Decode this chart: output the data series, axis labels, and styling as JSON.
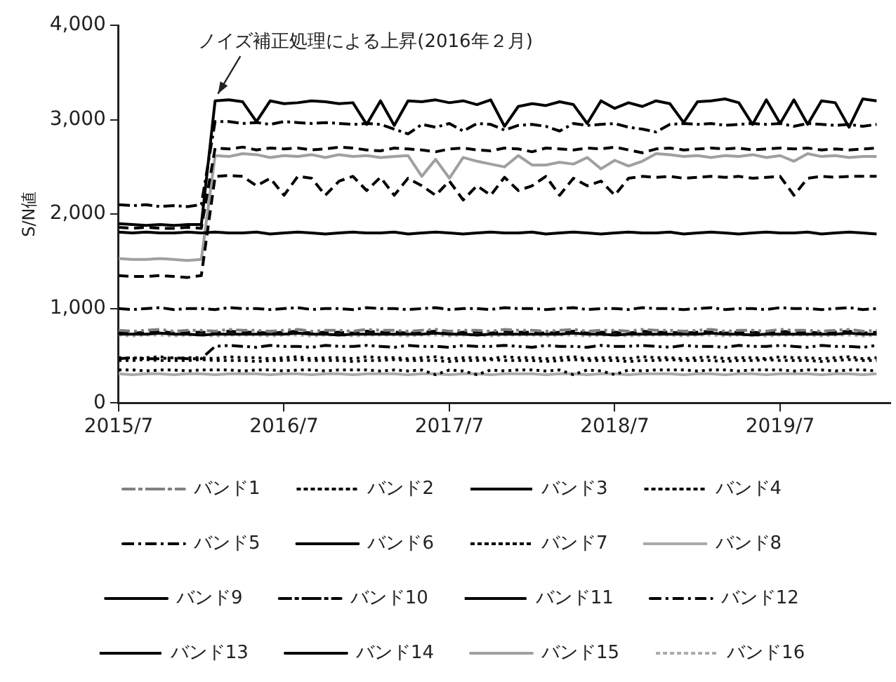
{
  "chart_data": {
    "type": "line",
    "ylabel": "S/N値",
    "legend": "bottom",
    "marker": "none",
    "annotations": [
      {
        "text": "ノイズ補正処理による上昇(2016年２月)",
        "x": "2016-02",
        "y": 3200
      }
    ],
    "xlim": [
      "2015-07",
      "2020-03"
    ],
    "xticks": [
      {
        "value": "2015-07",
        "label": "2015/7"
      },
      {
        "value": "2016-07",
        "label": "2016/7"
      },
      {
        "value": "2017-07",
        "label": "2017/7"
      },
      {
        "value": "2018-07",
        "label": "2018/7"
      },
      {
        "value": "2019-07",
        "label": "2019/7"
      }
    ],
    "ylim": [
      0,
      4000
    ],
    "yticks": [
      0,
      {
        "value": 1000,
        "label": "1,000"
      },
      {
        "value": 2000,
        "label": "2,000"
      },
      {
        "value": 3000,
        "label": "3,000"
      },
      {
        "value": 4000,
        "label": "4,000"
      }
    ],
    "x": [
      "2015-07",
      "2015-08",
      "2015-09",
      "2015-10",
      "2015-11",
      "2015-12",
      "2016-01",
      "2016-02",
      "2016-03",
      "2016-04",
      "2016-05",
      "2016-06",
      "2016-07",
      "2016-08",
      "2016-09",
      "2016-10",
      "2016-11",
      "2016-12",
      "2017-01",
      "2017-02",
      "2017-03",
      "2017-04",
      "2017-05",
      "2017-06",
      "2017-07",
      "2017-08",
      "2017-09",
      "2017-10",
      "2017-11",
      "2017-12",
      "2018-01",
      "2018-02",
      "2018-03",
      "2018-04",
      "2018-05",
      "2018-06",
      "2018-07",
      "2018-08",
      "2018-09",
      "2018-10",
      "2018-11",
      "2018-12",
      "2019-01",
      "2019-02",
      "2019-03",
      "2019-04",
      "2019-05",
      "2019-06",
      "2019-07",
      "2019-08",
      "2019-09",
      "2019-10",
      "2019-11",
      "2019-12",
      "2020-01",
      "2020-02"
    ],
    "series": [
      {
        "name": "バンド1",
        "color": "#808080",
        "line_style": "dashdotdot",
        "values": [
          770,
          760,
          770,
          780,
          760,
          770,
          770,
          760,
          780,
          770,
          770,
          760,
          770,
          780,
          760,
          770,
          770,
          760,
          780,
          770,
          770,
          760,
          770,
          780,
          760,
          770,
          770,
          760,
          780,
          770,
          770,
          760,
          770,
          780,
          760,
          770,
          770,
          760,
          780,
          770,
          770,
          760,
          770,
          780,
          760,
          770,
          770,
          760,
          780,
          770,
          770,
          760,
          770,
          780,
          760,
          770
        ]
      },
      {
        "name": "バンド2",
        "color": "#000000",
        "line_style": "dotted",
        "values": [
          480,
          470,
          480,
          490,
          470,
          480,
          480,
          470,
          490,
          480,
          480,
          470,
          480,
          490,
          470,
          480,
          480,
          470,
          490,
          480,
          480,
          470,
          480,
          490,
          470,
          480,
          480,
          470,
          490,
          480,
          480,
          470,
          480,
          490,
          470,
          480,
          480,
          470,
          490,
          480,
          480,
          470,
          480,
          490,
          470,
          480,
          480,
          470,
          490,
          480,
          480,
          470,
          480,
          490,
          470,
          480
        ]
      },
      {
        "name": "バンド3",
        "color": "#000000",
        "line_style": "dashed",
        "values": [
          750,
          740,
          750,
          760,
          740,
          750,
          750,
          740,
          760,
          750,
          750,
          740,
          750,
          760,
          740,
          750,
          750,
          740,
          760,
          750,
          750,
          740,
          750,
          760,
          740,
          750,
          750,
          740,
          760,
          750,
          750,
          740,
          750,
          760,
          740,
          750,
          750,
          740,
          760,
          750,
          750,
          740,
          750,
          760,
          740,
          750,
          750,
          740,
          760,
          750,
          750,
          740,
          750,
          760,
          740,
          750
        ]
      },
      {
        "name": "バンド4",
        "color": "#000000",
        "line_style": "dotted",
        "values": [
          450,
          450,
          460,
          450,
          450,
          450,
          460,
          450,
          450,
          450,
          440,
          450,
          450,
          460,
          450,
          450,
          450,
          440,
          450,
          450,
          460,
          450,
          450,
          450,
          440,
          450,
          450,
          460,
          450,
          450,
          450,
          440,
          450,
          460,
          450,
          450,
          450,
          440,
          450,
          450,
          460,
          450,
          450,
          450,
          440,
          450,
          450,
          460,
          450,
          450,
          450,
          440,
          450,
          460,
          450,
          450
        ]
      },
      {
        "name": "バンド5",
        "color": "#000000",
        "line_style": "dashdot",
        "values": [
          1000,
          990,
          1000,
          1010,
          990,
          1000,
          1000,
          990,
          1010,
          1000,
          1000,
          990,
          1000,
          1010,
          990,
          1000,
          1000,
          990,
          1010,
          1000,
          1000,
          990,
          1000,
          1010,
          990,
          1000,
          1000,
          990,
          1010,
          1000,
          1000,
          990,
          1000,
          1010,
          990,
          1000,
          1000,
          990,
          1010,
          1000,
          1000,
          990,
          1000,
          1010,
          990,
          1000,
          1000,
          990,
          1010,
          1000,
          1000,
          990,
          1000,
          1010,
          990,
          1000
        ]
      },
      {
        "name": "バンド6",
        "color": "#000000",
        "line_style": "solid",
        "values": [
          730,
          730,
          730,
          740,
          730,
          730,
          720,
          730,
          730,
          730,
          730,
          730,
          730,
          740,
          730,
          730,
          720,
          730,
          730,
          730,
          730,
          730,
          730,
          740,
          730,
          730,
          720,
          730,
          730,
          730,
          730,
          730,
          730,
          740,
          730,
          730,
          720,
          730,
          730,
          730,
          730,
          730,
          730,
          740,
          730,
          730,
          720,
          730,
          730,
          730,
          730,
          730,
          730,
          740,
          730,
          730
        ]
      },
      {
        "name": "バンド7",
        "color": "#000000",
        "line_style": "dotted",
        "values": [
          350,
          350,
          340,
          350,
          350,
          340,
          350,
          350,
          350,
          340,
          350,
          350,
          340,
          350,
          350,
          340,
          350,
          350,
          350,
          340,
          350,
          340,
          350,
          300,
          350,
          340,
          300,
          350,
          340,
          350,
          350,
          340,
          350,
          300,
          350,
          340,
          300,
          350,
          340,
          350,
          350,
          350,
          340,
          350,
          350,
          340,
          350,
          350,
          350,
          340,
          350,
          350,
          340,
          350,
          350,
          340
        ]
      },
      {
        "name": "バンド8",
        "color": "#aaaaaa",
        "line_style": "solid",
        "values": [
          310,
          300,
          310,
          310,
          300,
          310,
          310,
          300,
          310,
          310,
          310,
          300,
          310,
          310,
          300,
          310,
          310,
          300,
          310,
          310,
          310,
          300,
          310,
          310,
          300,
          310,
          310,
          300,
          310,
          310,
          310,
          300,
          310,
          310,
          300,
          310,
          310,
          300,
          310,
          310,
          310,
          300,
          310,
          310,
          300,
          310,
          310,
          300,
          310,
          310,
          310,
          300,
          310,
          310,
          300,
          310
        ]
      },
      {
        "name": "バンド9",
        "color": "#000000",
        "line_style": "solid",
        "values": [
          1810,
          1800,
          1810,
          1800,
          1800,
          1810,
          1800,
          1810,
          1800,
          1800,
          1810,
          1790,
          1800,
          1810,
          1800,
          1790,
          1800,
          1810,
          1800,
          1800,
          1810,
          1790,
          1800,
          1810,
          1800,
          1790,
          1800,
          1810,
          1800,
          1800,
          1810,
          1790,
          1800,
          1810,
          1800,
          1790,
          1800,
          1810,
          1800,
          1800,
          1810,
          1790,
          1800,
          1810,
          1800,
          1790,
          1800,
          1810,
          1800,
          1800,
          1810,
          1790,
          1800,
          1810,
          1800,
          1790
        ]
      },
      {
        "name": "バンド10",
        "color": "#000000",
        "line_style": "dashdotdot",
        "values": [
          470,
          480,
          470,
          470,
          480,
          470,
          470,
          600,
          610,
          600,
          590,
          610,
          600,
          600,
          590,
          610,
          600,
          600,
          610,
          600,
          590,
          610,
          600,
          600,
          590,
          610,
          600,
          600,
          610,
          600,
          590,
          610,
          600,
          600,
          590,
          610,
          600,
          600,
          610,
          600,
          590,
          610,
          600,
          600,
          590,
          610,
          600,
          600,
          610,
          600,
          590,
          610,
          600,
          600,
          590,
          610
        ]
      },
      {
        "name": "バンド11",
        "color": "#000000",
        "line_style": "dashed",
        "values": [
          1860,
          1850,
          1860,
          1850,
          1850,
          1860,
          1850,
          2700,
          2690,
          2710,
          2680,
          2700,
          2690,
          2700,
          2680,
          2690,
          2710,
          2700,
          2680,
          2670,
          2700,
          2690,
          2680,
          2660,
          2690,
          2700,
          2680,
          2670,
          2700,
          2690,
          2660,
          2700,
          2690,
          2680,
          2700,
          2690,
          2710,
          2680,
          2650,
          2690,
          2700,
          2680,
          2690,
          2700,
          2690,
          2700,
          2680,
          2690,
          2700,
          2690,
          2700,
          2680,
          2690,
          2680,
          2690,
          2700
        ]
      },
      {
        "name": "バンド12",
        "color": "#000000",
        "line_style": "dashdot",
        "values": [
          2100,
          2090,
          2100,
          2080,
          2090,
          2080,
          2100,
          2980,
          2980,
          2960,
          2970,
          2950,
          2980,
          2970,
          2960,
          2970,
          2960,
          2950,
          2960,
          2950,
          2900,
          2850,
          2950,
          2920,
          2960,
          2880,
          2960,
          2950,
          2890,
          2940,
          2950,
          2930,
          2880,
          2960,
          2940,
          2950,
          2960,
          2920,
          2900,
          2870,
          2950,
          2960,
          2950,
          2960,
          2940,
          2950,
          2960,
          2950,
          2960,
          2930,
          2960,
          2950,
          2940,
          2950,
          2930,
          2950
        ]
      },
      {
        "name": "バンド13",
        "color": "#000000",
        "line_style": "dashed",
        "values": [
          1350,
          1340,
          1340,
          1350,
          1340,
          1330,
          1350,
          2400,
          2410,
          2400,
          2300,
          2380,
          2200,
          2400,
          2380,
          2200,
          2350,
          2400,
          2250,
          2390,
          2200,
          2380,
          2300,
          2200,
          2350,
          2150,
          2300,
          2200,
          2390,
          2250,
          2300,
          2400,
          2200,
          2380,
          2300,
          2350,
          2200,
          2380,
          2400,
          2390,
          2400,
          2380,
          2390,
          2400,
          2390,
          2400,
          2380,
          2390,
          2400,
          2200,
          2380,
          2400,
          2390,
          2400,
          2400,
          2400
        ]
      },
      {
        "name": "バンド14",
        "color": "#000000",
        "line_style": "solid",
        "values": [
          1900,
          1890,
          1880,
          1890,
          1880,
          1890,
          1890,
          3200,
          3210,
          3190,
          2980,
          3200,
          3170,
          3180,
          3200,
          3190,
          3170,
          3180,
          2950,
          3200,
          2940,
          3200,
          3190,
          3210,
          3180,
          3200,
          3160,
          3210,
          2930,
          3140,
          3170,
          3150,
          3190,
          3160,
          2960,
          3200,
          3120,
          3180,
          3140,
          3200,
          3170,
          2970,
          3190,
          3200,
          3220,
          3180,
          2950,
          3210,
          2960,
          3210,
          2950,
          3200,
          3180,
          2920,
          3220,
          3200
        ]
      },
      {
        "name": "バンド15",
        "color": "#a0a0a0",
        "line_style": "solid",
        "values": [
          1530,
          1520,
          1520,
          1530,
          1520,
          1510,
          1520,
          2620,
          2610,
          2640,
          2630,
          2600,
          2620,
          2610,
          2630,
          2600,
          2630,
          2610,
          2620,
          2600,
          2610,
          2620,
          2400,
          2580,
          2380,
          2600,
          2560,
          2530,
          2500,
          2620,
          2520,
          2520,
          2550,
          2530,
          2600,
          2480,
          2570,
          2510,
          2560,
          2640,
          2630,
          2610,
          2620,
          2600,
          2620,
          2610,
          2630,
          2600,
          2620,
          2560,
          2640,
          2610,
          2620,
          2600,
          2610,
          2610
        ]
      },
      {
        "name": "バンド16",
        "color": "#aaaaaa",
        "line_style": "dotted",
        "values": [
          720,
          710,
          720,
          720,
          710,
          720,
          720,
          710,
          720,
          720,
          720,
          710,
          720,
          720,
          710,
          720,
          720,
          710,
          720,
          720,
          720,
          710,
          720,
          720,
          710,
          720,
          720,
          710,
          720,
          720,
          720,
          710,
          720,
          720,
          710,
          720,
          720,
          710,
          720,
          720,
          720,
          710,
          720,
          720,
          710,
          720,
          720,
          710,
          720,
          720,
          720,
          710,
          720,
          720,
          710,
          720
        ]
      }
    ]
  }
}
